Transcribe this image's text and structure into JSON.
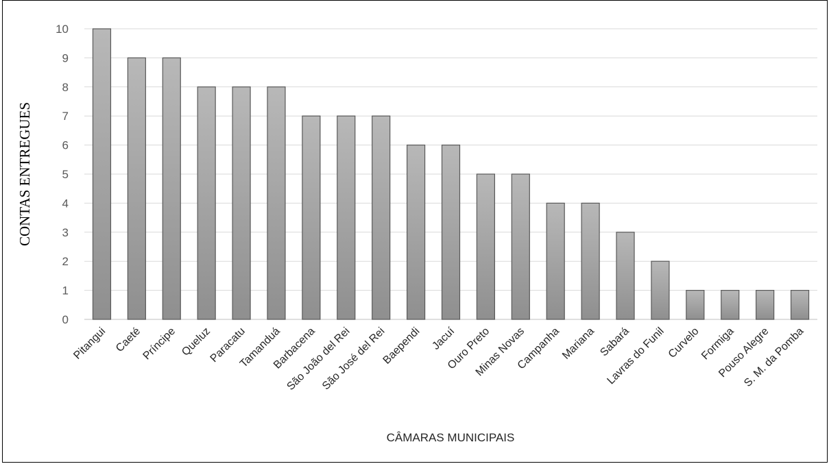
{
  "chart_data": {
    "type": "bar",
    "xlabel": "CÂMARAS MUNICIPAIS",
    "ylabel": "CONTAS ENTREGUES",
    "ylim": [
      0,
      10
    ],
    "yticks": [
      "0",
      "1",
      "2",
      "3",
      "4",
      "5",
      "6",
      "7",
      "8",
      "9",
      "10"
    ],
    "grid": true,
    "categories": [
      "Pitangui",
      "Caeté",
      "Príncipe",
      "Queluz",
      "Paracatu",
      "Tamanduá",
      "Barbacena",
      "São João del Rei",
      "São José del Rei",
      "Baependi",
      "Jacuí",
      "Ouro Preto",
      "Minas Novas",
      "Campanha",
      "Mariana",
      "Sabará",
      "Lavras do Funil",
      "Curvelo",
      "Formiga",
      "Pouso Alegre",
      "S. M. da Pomba"
    ],
    "values": [
      10,
      9,
      9,
      8,
      8,
      8,
      7,
      7,
      7,
      6,
      6,
      5,
      5,
      4,
      4,
      3,
      2,
      1,
      1,
      1,
      1
    ],
    "bar_color": "#a6a6a6",
    "bar_stroke": "#595959",
    "grid_color": "#d9d9d9"
  }
}
